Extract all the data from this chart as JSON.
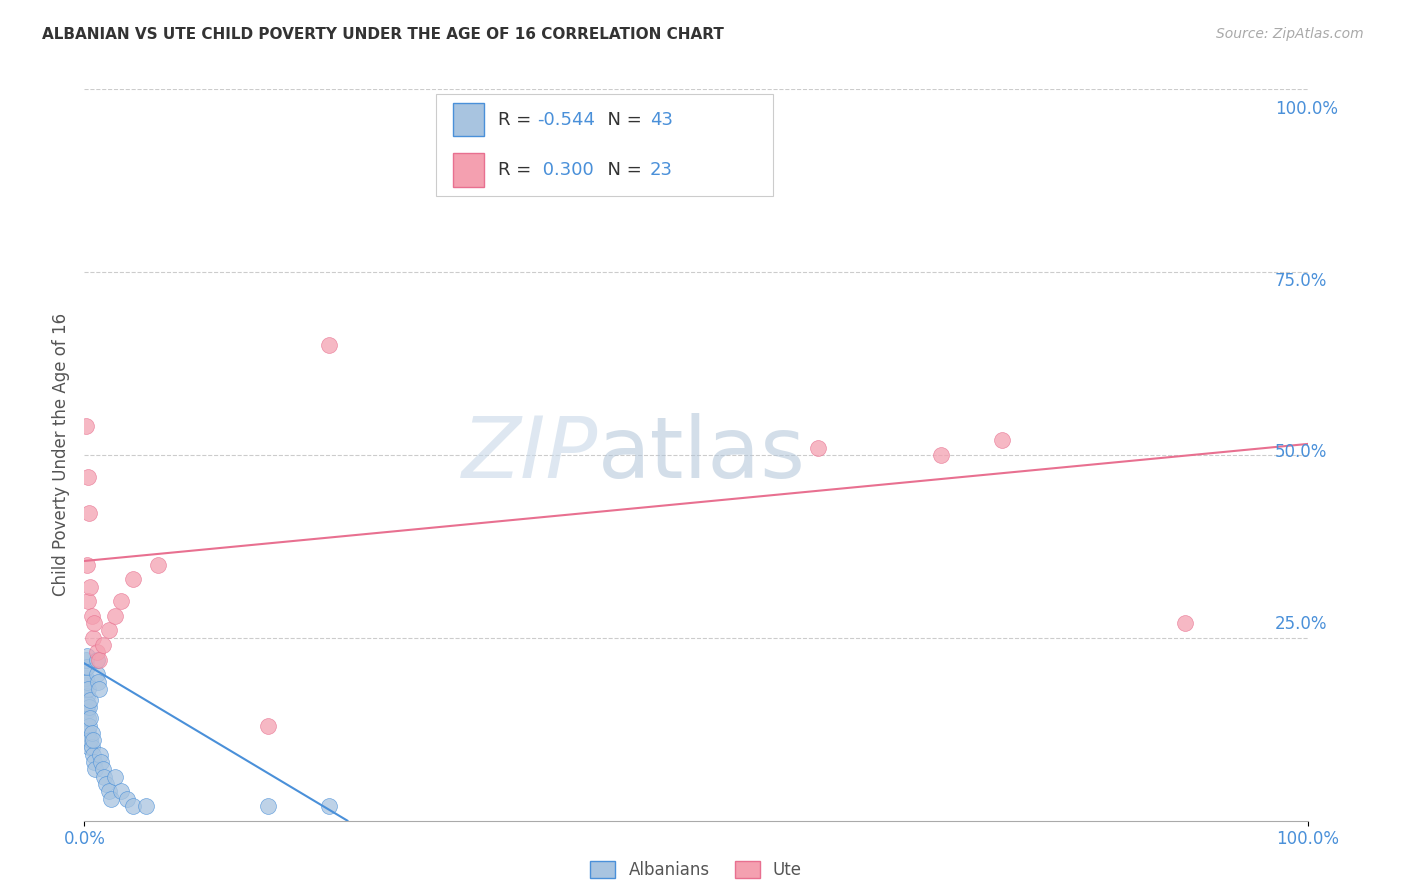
{
  "title": "ALBANIAN VS UTE CHILD POVERTY UNDER THE AGE OF 16 CORRELATION CHART",
  "source": "Source: ZipAtlas.com",
  "ylabel": "Child Poverty Under the Age of 16",
  "xlim": [
    0.0,
    1.0
  ],
  "ylim": [
    0.0,
    1.0
  ],
  "xtick_labels": [
    "0.0%",
    "100.0%"
  ],
  "ytick_labels_right": [
    "100.0%",
    "75.0%",
    "50.0%",
    "25.0%"
  ],
  "ytick_positions_right": [
    1.0,
    0.75,
    0.5,
    0.25
  ],
  "grid_color": "#cccccc",
  "background_color": "#ffffff",
  "albanians_color": "#a8c4e0",
  "ute_color": "#f4a0b0",
  "albanians_line_color": "#4a90d9",
  "ute_line_color": "#e87090",
  "legend_R_albanians": "-0.544",
  "legend_N_albanians": "43",
  "legend_R_ute": "0.300",
  "legend_N_ute": "23",
  "albanians_x": [
    0.001,
    0.001,
    0.001,
    0.001,
    0.002,
    0.002,
    0.002,
    0.002,
    0.002,
    0.003,
    0.003,
    0.003,
    0.003,
    0.004,
    0.004,
    0.004,
    0.005,
    0.005,
    0.005,
    0.006,
    0.006,
    0.007,
    0.007,
    0.008,
    0.009,
    0.01,
    0.01,
    0.011,
    0.012,
    0.013,
    0.014,
    0.015,
    0.016,
    0.018,
    0.02,
    0.022,
    0.025,
    0.03,
    0.035,
    0.04,
    0.05,
    0.15,
    0.2
  ],
  "albanians_y": [
    0.185,
    0.195,
    0.21,
    0.22,
    0.15,
    0.17,
    0.19,
    0.21,
    0.225,
    0.12,
    0.14,
    0.16,
    0.18,
    0.1,
    0.13,
    0.155,
    0.11,
    0.14,
    0.165,
    0.1,
    0.12,
    0.09,
    0.11,
    0.08,
    0.07,
    0.2,
    0.22,
    0.19,
    0.18,
    0.09,
    0.08,
    0.07,
    0.06,
    0.05,
    0.04,
    0.03,
    0.06,
    0.04,
    0.03,
    0.02,
    0.02,
    0.02,
    0.02
  ],
  "ute_x": [
    0.001,
    0.002,
    0.003,
    0.004,
    0.005,
    0.006,
    0.007,
    0.008,
    0.01,
    0.012,
    0.015,
    0.02,
    0.025,
    0.03,
    0.04,
    0.06,
    0.6,
    0.7,
    0.75,
    0.9,
    0.003,
    0.15,
    0.2
  ],
  "ute_y": [
    0.54,
    0.35,
    0.3,
    0.42,
    0.32,
    0.28,
    0.25,
    0.27,
    0.23,
    0.22,
    0.24,
    0.26,
    0.28,
    0.3,
    0.33,
    0.35,
    0.51,
    0.5,
    0.52,
    0.27,
    0.47,
    0.13,
    0.65
  ],
  "albanians_trend_x": [
    0.0,
    0.215
  ],
  "albanians_trend_y": [
    0.215,
    0.0
  ],
  "ute_trend_x": [
    0.0,
    1.0
  ],
  "ute_trend_y": [
    0.355,
    0.515
  ]
}
